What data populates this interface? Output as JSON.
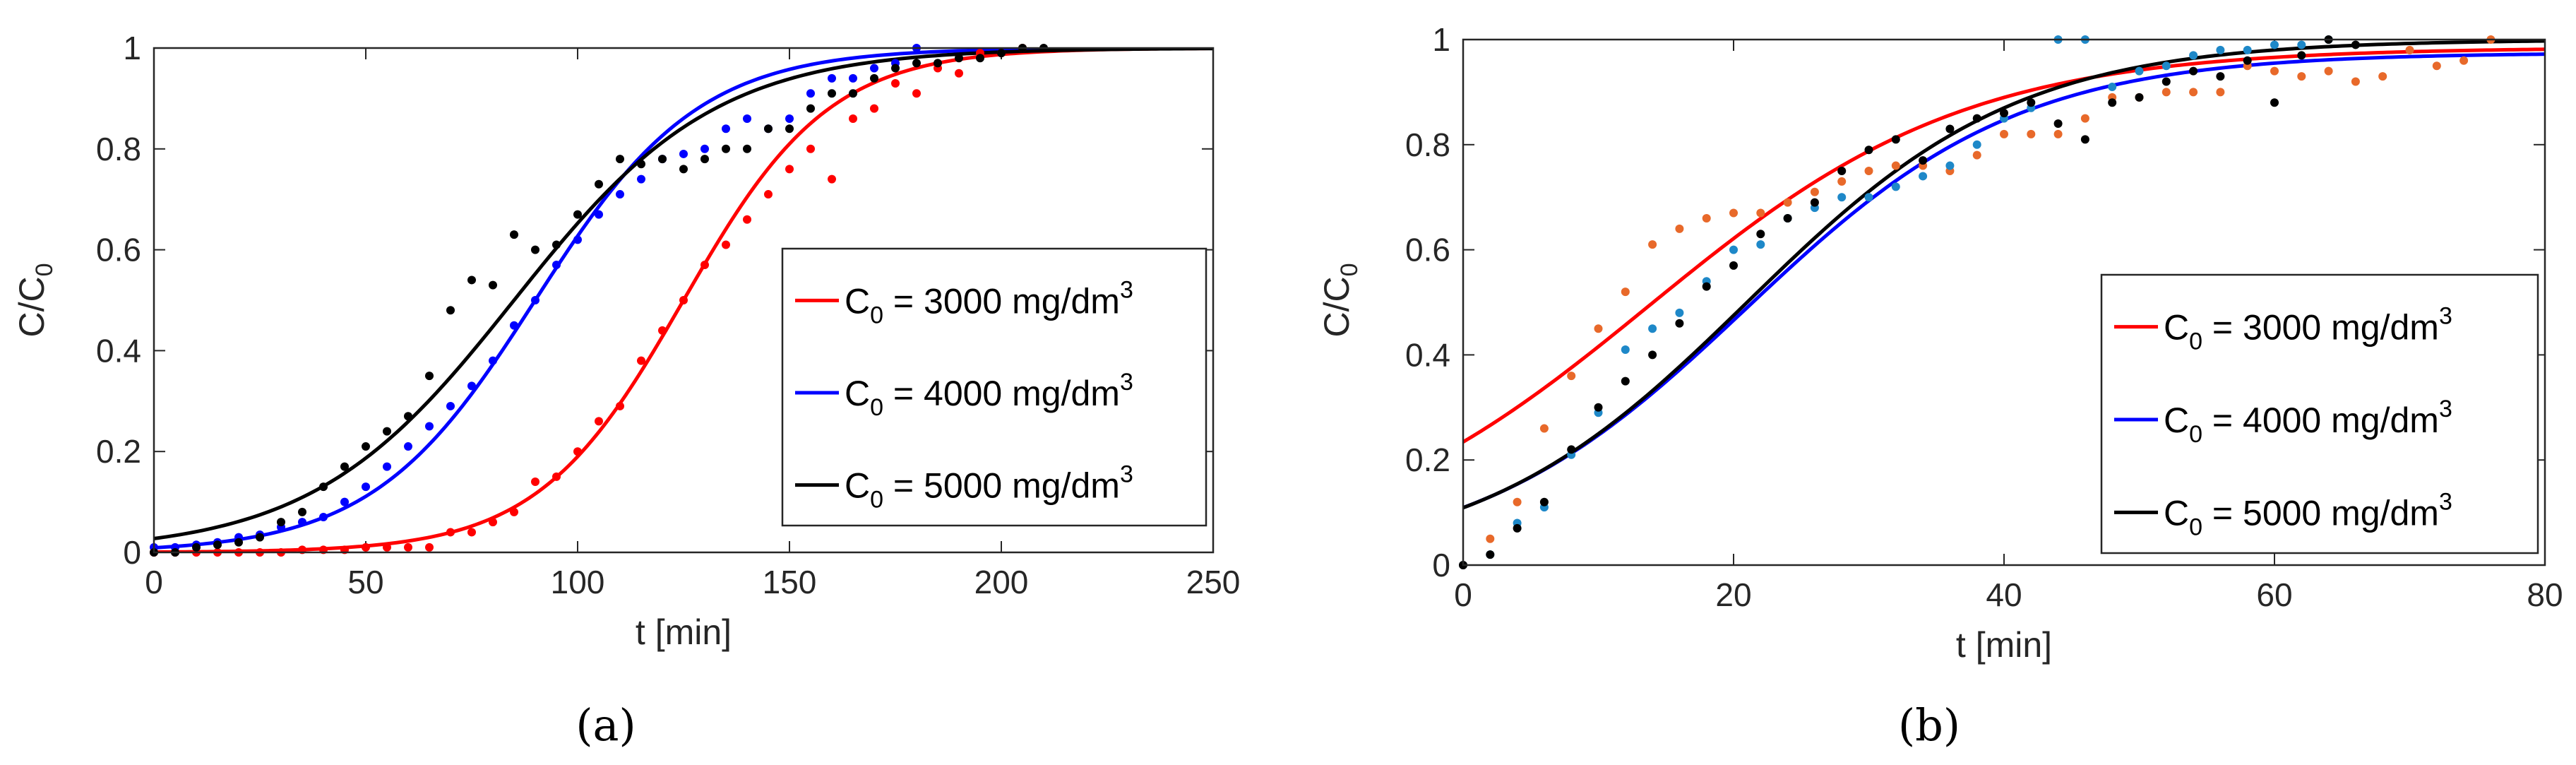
{
  "chart_data": [
    {
      "type": "line",
      "panel": "(a)",
      "xlabel": "t [min]",
      "ylabel": "C/C",
      "ylabel_sub": "0",
      "xlim": [
        0,
        250
      ],
      "ylim": [
        0,
        1
      ],
      "xticks": [
        0,
        50,
        100,
        150,
        200,
        250
      ],
      "yticks": [
        0,
        0.2,
        0.4,
        0.6,
        0.8,
        1
      ],
      "xtick_labels": [
        "0",
        "50",
        "100",
        "150",
        "200",
        "250"
      ],
      "ytick_labels": [
        "0",
        "0.2",
        "0.4",
        "0.6",
        "0.8",
        "1"
      ],
      "legend_position": "right",
      "series": [
        {
          "name": "3000",
          "legend_prefix": "C",
          "legend_sub": "0",
          "legend_mid": " = 3000 mg/dm",
          "legend_sup": "3",
          "color": "#ff0000",
          "marker_color": "#ff0000",
          "fit": {
            "k": 0.058,
            "t50": 125
          },
          "points": [
            [
              0,
              0
            ],
            [
              5,
              0
            ],
            [
              10,
              0
            ],
            [
              15,
              0
            ],
            [
              20,
              0
            ],
            [
              25,
              0
            ],
            [
              30,
              0
            ],
            [
              35,
              0.005
            ],
            [
              40,
              0.005
            ],
            [
              45,
              0.005
            ],
            [
              50,
              0.01
            ],
            [
              55,
              0.01
            ],
            [
              60,
              0.01
            ],
            [
              65,
              0.01
            ],
            [
              70,
              0.04
            ],
            [
              75,
              0.04
            ],
            [
              80,
              0.06
            ],
            [
              85,
              0.08
            ],
            [
              90,
              0.14
            ],
            [
              95,
              0.15
            ],
            [
              100,
              0.2
            ],
            [
              105,
              0.26
            ],
            [
              110,
              0.29
            ],
            [
              115,
              0.38
            ],
            [
              120,
              0.44
            ],
            [
              125,
              0.5
            ],
            [
              130,
              0.57
            ],
            [
              135,
              0.61
            ],
            [
              140,
              0.66
            ],
            [
              145,
              0.71
            ],
            [
              150,
              0.76
            ],
            [
              155,
              0.8
            ],
            [
              160,
              0.74
            ],
            [
              165,
              0.86
            ],
            [
              170,
              0.88
            ],
            [
              175,
              0.93
            ],
            [
              180,
              0.91
            ],
            [
              185,
              0.96
            ],
            [
              190,
              0.95
            ],
            [
              195,
              0.99
            ],
            [
              200,
              0.99
            ],
            [
              205,
              1.0
            ]
          ]
        },
        {
          "name": "4000",
          "legend_prefix": "C",
          "legend_sub": "0",
          "legend_mid": " = 4000 mg/dm",
          "legend_sup": "3",
          "color": "#0000ff",
          "marker_color": "#0000ff",
          "fit": {
            "k": 0.052,
            "t50": 90
          },
          "points": [
            [
              0,
              0.01
            ],
            [
              5,
              0.01
            ],
            [
              10,
              0.015
            ],
            [
              15,
              0.02
            ],
            [
              20,
              0.03
            ],
            [
              25,
              0.035
            ],
            [
              30,
              0.05
            ],
            [
              35,
              0.06
            ],
            [
              40,
              0.07
            ],
            [
              45,
              0.1
            ],
            [
              50,
              0.13
            ],
            [
              55,
              0.17
            ],
            [
              60,
              0.21
            ],
            [
              65,
              0.25
            ],
            [
              70,
              0.29
            ],
            [
              75,
              0.33
            ],
            [
              80,
              0.38
            ],
            [
              85,
              0.45
            ],
            [
              90,
              0.5
            ],
            [
              95,
              0.57
            ],
            [
              100,
              0.62
            ],
            [
              105,
              0.67
            ],
            [
              110,
              0.71
            ],
            [
              115,
              0.74
            ],
            [
              120,
              0.78
            ],
            [
              125,
              0.79
            ],
            [
              130,
              0.8
            ],
            [
              135,
              0.84
            ],
            [
              140,
              0.86
            ],
            [
              145,
              0.84
            ],
            [
              150,
              0.86
            ],
            [
              155,
              0.91
            ],
            [
              160,
              0.94
            ],
            [
              165,
              0.94
            ],
            [
              170,
              0.96
            ],
            [
              175,
              0.97
            ],
            [
              180,
              1.0
            ]
          ]
        },
        {
          "name": "5000",
          "legend_prefix": "C",
          "legend_sub": "0",
          "legend_mid": " = 5000 mg/dm",
          "legend_sup": "3",
          "color": "#000000",
          "marker_color": "#000000",
          "fit": {
            "k": 0.042,
            "t50": 85
          },
          "points": [
            [
              0,
              0
            ],
            [
              5,
              0
            ],
            [
              10,
              0.01
            ],
            [
              15,
              0.015
            ],
            [
              20,
              0.02
            ],
            [
              25,
              0.03
            ],
            [
              30,
              0.06
            ],
            [
              35,
              0.08
            ],
            [
              40,
              0.13
            ],
            [
              45,
              0.17
            ],
            [
              50,
              0.21
            ],
            [
              55,
              0.24
            ],
            [
              60,
              0.27
            ],
            [
              65,
              0.35
            ],
            [
              70,
              0.48
            ],
            [
              75,
              0.54
            ],
            [
              80,
              0.53
            ],
            [
              85,
              0.63
            ],
            [
              90,
              0.6
            ],
            [
              95,
              0.61
            ],
            [
              100,
              0.67
            ],
            [
              105,
              0.73
            ],
            [
              110,
              0.78
            ],
            [
              115,
              0.77
            ],
            [
              120,
              0.78
            ],
            [
              125,
              0.76
            ],
            [
              130,
              0.78
            ],
            [
              135,
              0.8
            ],
            [
              140,
              0.8
            ],
            [
              145,
              0.84
            ],
            [
              150,
              0.84
            ],
            [
              155,
              0.88
            ],
            [
              160,
              0.91
            ],
            [
              165,
              0.91
            ],
            [
              170,
              0.94
            ],
            [
              175,
              0.96
            ],
            [
              180,
              0.97
            ],
            [
              185,
              0.97
            ],
            [
              190,
              0.98
            ],
            [
              195,
              0.98
            ],
            [
              200,
              0.99
            ],
            [
              205,
              1.0
            ],
            [
              210,
              1.0
            ]
          ]
        }
      ]
    },
    {
      "type": "line",
      "panel": "(b)",
      "xlabel": "t [min]",
      "ylabel": "C/C",
      "ylabel_sub": "0",
      "xlim": [
        0,
        80
      ],
      "ylim": [
        0,
        1
      ],
      "xticks": [
        0,
        20,
        40,
        60,
        80
      ],
      "yticks": [
        0,
        0.2,
        0.4,
        0.6,
        0.8,
        1
      ],
      "xtick_labels": [
        "0",
        "20",
        "40",
        "60",
        "80"
      ],
      "ytick_labels": [
        "0",
        "0.2",
        "0.4",
        "0.6",
        "0.8",
        "1"
      ],
      "legend_position": "right",
      "series": [
        {
          "name": "3000",
          "legend_prefix": "C",
          "legend_sub": "0",
          "legend_mid": " = 3000 mg/dm",
          "legend_sup": "3",
          "color": "#ff0000",
          "marker_color": "#e8692a",
          "fit": {
            "k": 0.085,
            "t50": 13.7,
            "a": 0.985
          },
          "points": [
            [
              0,
              0
            ],
            [
              2,
              0.05
            ],
            [
              4,
              0.12
            ],
            [
              6,
              0.26
            ],
            [
              8,
              0.36
            ],
            [
              10,
              0.45
            ],
            [
              12,
              0.52
            ],
            [
              14,
              0.61
            ],
            [
              16,
              0.64
            ],
            [
              18,
              0.66
            ],
            [
              20,
              0.67
            ],
            [
              22,
              0.67
            ],
            [
              24,
              0.69
            ],
            [
              26,
              0.71
            ],
            [
              28,
              0.73
            ],
            [
              30,
              0.75
            ],
            [
              32,
              0.76
            ],
            [
              34,
              0.76
            ],
            [
              36,
              0.75
            ],
            [
              38,
              0.78
            ],
            [
              40,
              0.82
            ],
            [
              42,
              0.82
            ],
            [
              44,
              0.82
            ],
            [
              46,
              0.85
            ],
            [
              48,
              0.89
            ],
            [
              50,
              0.89
            ],
            [
              52,
              0.9
            ],
            [
              54,
              0.9
            ],
            [
              56,
              0.9
            ],
            [
              58,
              0.95
            ],
            [
              60,
              0.94
            ],
            [
              62,
              0.93
            ],
            [
              64,
              0.94
            ],
            [
              66,
              0.92
            ],
            [
              68,
              0.93
            ],
            [
              70,
              0.98
            ],
            [
              72,
              0.95
            ],
            [
              74,
              0.96
            ],
            [
              76,
              1.0
            ]
          ]
        },
        {
          "name": "4000",
          "legend_prefix": "C",
          "legend_sub": "0",
          "legend_mid": " = 4000 mg/dm",
          "legend_sup": "3",
          "color": "#0000ff",
          "marker_color": "#1e88c8",
          "fit": {
            "k": 0.099,
            "t50": 20.9,
            "a": 0.975
          },
          "points": [
            [
              0,
              0
            ],
            [
              2,
              0.02
            ],
            [
              4,
              0.08
            ],
            [
              6,
              0.11
            ],
            [
              8,
              0.21
            ],
            [
              10,
              0.29
            ],
            [
              12,
              0.41
            ],
            [
              14,
              0.45
            ],
            [
              16,
              0.48
            ],
            [
              18,
              0.54
            ],
            [
              20,
              0.6
            ],
            [
              22,
              0.61
            ],
            [
              24,
              0.66
            ],
            [
              26,
              0.68
            ],
            [
              28,
              0.7
            ],
            [
              30,
              0.7
            ],
            [
              32,
              0.72
            ],
            [
              34,
              0.74
            ],
            [
              36,
              0.76
            ],
            [
              38,
              0.8
            ],
            [
              40,
              0.85
            ],
            [
              42,
              0.87
            ],
            [
              44,
              1.0
            ],
            [
              46,
              1.0
            ],
            [
              48,
              0.91
            ],
            [
              50,
              0.94
            ],
            [
              52,
              0.95
            ],
            [
              54,
              0.97
            ],
            [
              56,
              0.98
            ],
            [
              58,
              0.98
            ],
            [
              60,
              0.99
            ],
            [
              62,
              0.99
            ],
            [
              64,
              1.0
            ]
          ]
        },
        {
          "name": "5000",
          "legend_prefix": "C",
          "legend_sub": "0",
          "legend_mid": " = 5000 mg/dm",
          "legend_sup": "3",
          "color": "#000000",
          "marker_color": "#000000",
          "fit": {
            "k": 0.1,
            "t50": 21,
            "a": 1.0
          },
          "points": [
            [
              0,
              0
            ],
            [
              2,
              0.02
            ],
            [
              4,
              0.07
            ],
            [
              6,
              0.12
            ],
            [
              8,
              0.22
            ],
            [
              10,
              0.3
            ],
            [
              12,
              0.35
            ],
            [
              14,
              0.4
            ],
            [
              16,
              0.46
            ],
            [
              18,
              0.53
            ],
            [
              20,
              0.57
            ],
            [
              22,
              0.63
            ],
            [
              24,
              0.66
            ],
            [
              26,
              0.69
            ],
            [
              28,
              0.75
            ],
            [
              30,
              0.79
            ],
            [
              32,
              0.81
            ],
            [
              34,
              0.77
            ],
            [
              36,
              0.83
            ],
            [
              38,
              0.85
            ],
            [
              40,
              0.86
            ],
            [
              42,
              0.88
            ],
            [
              44,
              0.84
            ],
            [
              46,
              0.81
            ],
            [
              48,
              0.88
            ],
            [
              50,
              0.89
            ],
            [
              52,
              0.92
            ],
            [
              54,
              0.94
            ],
            [
              56,
              0.93
            ],
            [
              58,
              0.96
            ],
            [
              60,
              0.88
            ],
            [
              62,
              0.97
            ],
            [
              64,
              1.0
            ],
            [
              66,
              0.99
            ]
          ]
        }
      ]
    }
  ]
}
